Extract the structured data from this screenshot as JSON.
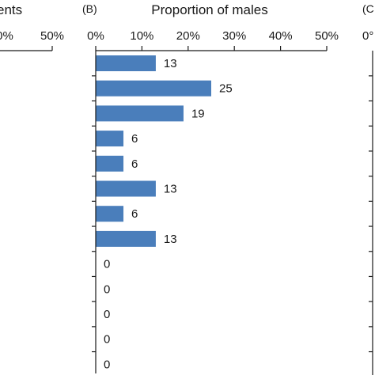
{
  "panels": {
    "left": {
      "title_fragment": "ents",
      "ticks": [
        "0%",
        "50%"
      ]
    },
    "middle": {
      "panel_label": "(B)",
      "title": "Proportion of males"
    },
    "right": {
      "panel_label_fragment": "(C",
      "tick_fragment": "0°"
    }
  },
  "chart_data": {
    "type": "bar",
    "orientation": "horizontal",
    "title": "Proportion of males",
    "xlim": [
      0,
      50
    ],
    "x_ticks": [
      "0%",
      "10%",
      "20%",
      "30%",
      "40%",
      "50%"
    ],
    "tick_values": [
      0,
      10,
      20,
      30,
      40,
      50
    ],
    "values": [
      13,
      25,
      19,
      6,
      6,
      13,
      6,
      13,
      0,
      0,
      0,
      0,
      0
    ],
    "value_labels": [
      "13",
      "25",
      "19",
      "6",
      "6",
      "13",
      "6",
      "13",
      "0",
      "0",
      "0",
      "0",
      "0"
    ],
    "bar_color": "#4a7ebb",
    "grid": false
  }
}
